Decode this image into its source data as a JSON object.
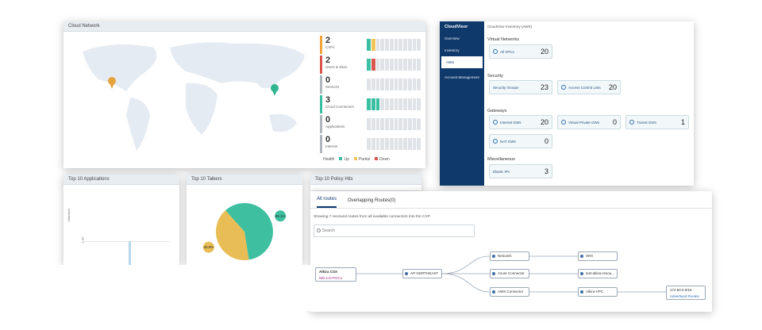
{
  "cloud_network": {
    "title": "Cloud Network",
    "stats": [
      {
        "value": "2",
        "label": "CXPs",
        "color": "#f2a33a",
        "up": 1,
        "partial": 1,
        "down": 0
      },
      {
        "value": "2",
        "label": "Users & Sites",
        "color": "#d9534f",
        "up": 1,
        "partial": 0,
        "down": 1
      },
      {
        "value": "0",
        "label": "Services",
        "color": "#aeb6bf",
        "up": 0,
        "partial": 0,
        "down": 0
      },
      {
        "value": "3",
        "label": "Cloud Connectors",
        "color": "#3bbfa3",
        "up": 3,
        "partial": 0,
        "down": 0
      },
      {
        "value": "0",
        "label": "Applications",
        "color": "#aeb6bf",
        "up": 0,
        "partial": 0,
        "down": 0
      },
      {
        "value": "0",
        "label": "Internet",
        "color": "#aeb6bf",
        "up": 0,
        "partial": 0,
        "down": 0
      }
    ],
    "health": {
      "label": "Health",
      "up": "Up",
      "partial": "Partial",
      "down": "Down"
    },
    "colors": {
      "up": "#3bbfa3",
      "partial": "#f2c55a",
      "down": "#d9534f"
    }
  },
  "top_apps": {
    "title": "Top 10 Applications",
    "y_label": "Utilization",
    "y_tick": "1.00"
  },
  "top_talkers": {
    "title": "Top 10 Talkers",
    "slices": [
      {
        "label": "40.9%",
        "value": 40.9,
        "color": "#e9bd55"
      },
      {
        "label": "59.1%",
        "value": 59.1,
        "color": "#3dbfa0"
      }
    ]
  },
  "top_policy": {
    "title": "Top 10 Policy Hits"
  },
  "inventory": {
    "brand": "CloudVisor",
    "title": "CloudVisor Inventory (AWS)",
    "nav": [
      "Overview",
      "Inventory",
      "AWS",
      "Account Management"
    ],
    "sections": {
      "vn": "Virtual Networks",
      "sec": "Security",
      "gw": "Gateways",
      "misc": "Miscellaneous"
    },
    "cards": {
      "all_vpcs": {
        "label": "All VPCs",
        "value": "20"
      },
      "security_groups": {
        "label": "Security Groups",
        "value": "23"
      },
      "acl": {
        "label": "Access Control Lists",
        "value": "20"
      },
      "igw": {
        "label": "Internet GWs",
        "value": "20"
      },
      "vpgw": {
        "label": "Virtual Private GWs",
        "value": "0"
      },
      "tgw": {
        "label": "Transit GWs",
        "value": "1"
      },
      "nat": {
        "label": "NAT GWs",
        "value": "0"
      },
      "eip": {
        "label": "Elastic IPs",
        "value": "3"
      }
    }
  },
  "routes": {
    "tabs": [
      "All routes",
      "Overlapping Routes(0)"
    ],
    "info": "Showing 7 received routes from all available connectors into the CXP",
    "search_placeholder": "Search",
    "nodes": {
      "csx": "Alkira CSX",
      "csx_sub": "NELCO-POC1",
      "region": "AP-NORTHEAST",
      "nelcodc": "NelcoDC",
      "azure": "Azure Connector",
      "aws": "AWS Connector",
      "srx": "SRX",
      "test": "test-alkira-resou...",
      "alkira_vpc": "Alkira-VPC",
      "cidr": "172.50.0.0/16",
      "advertised": "Advertised Routes"
    }
  }
}
